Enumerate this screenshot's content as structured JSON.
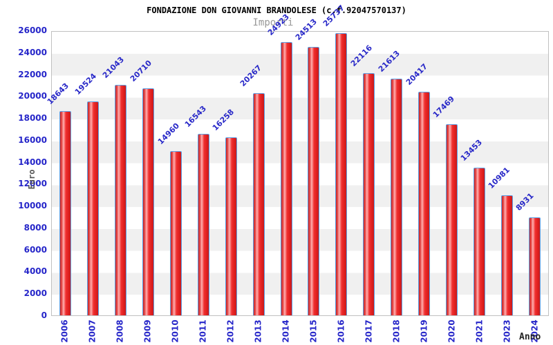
{
  "title": "FONDAZIONE DON GIOVANNI BRANDOLESE (c.f.92047570137)",
  "subtitle": "Importi",
  "axes": {
    "y_title": "Euro",
    "x_title": "Anno"
  },
  "chart_data": {
    "type": "bar",
    "title": "FONDAZIONE DON GIOVANNI BRANDOLESE (c.f.92047570137)",
    "subtitle": "Importi",
    "xlabel": "Anno",
    "ylabel": "Euro",
    "categories": [
      "2006",
      "2007",
      "2008",
      "2009",
      "2010",
      "2011",
      "2012",
      "2013",
      "2014",
      "2015",
      "2016",
      "2017",
      "2018",
      "2019",
      "2020",
      "2021",
      "2023",
      "2024"
    ],
    "values": [
      18643,
      19524,
      21043,
      20710,
      14960,
      16543,
      16258,
      20267,
      24923,
      24513,
      25737,
      22116,
      21613,
      20417,
      17469,
      13453,
      10981,
      8931
    ],
    "ylim": [
      0,
      26000
    ],
    "ytick_step": 2000,
    "grid": "horizontal-bands",
    "legend": "none",
    "colors": {
      "bar_fill": "#e02020",
      "bar_highlight": "#ffb0b0",
      "bar_border": "#5aa0e6",
      "value_label": "#2929c8",
      "tick_label": "#2626c9",
      "band_light": "#ffffff",
      "band_dark": "#f0f0f0",
      "title": "#000000",
      "subtitle": "#999999",
      "axis_title": "#444444"
    }
  }
}
